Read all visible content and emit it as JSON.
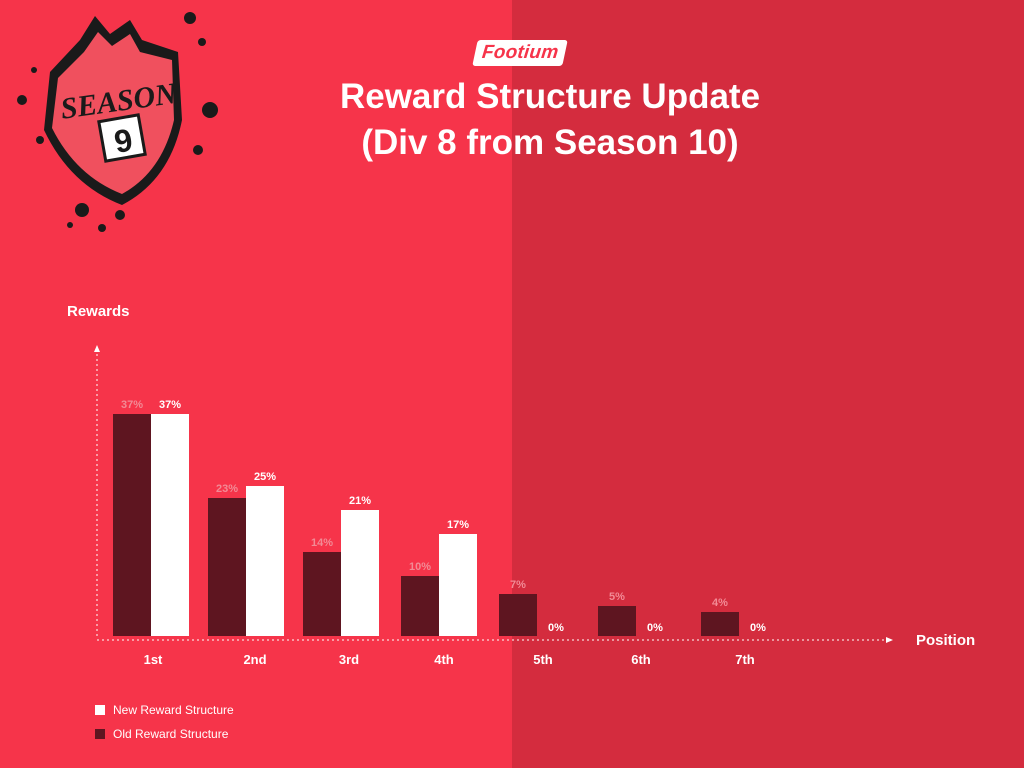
{
  "brand": {
    "name": "Footium"
  },
  "badge": {
    "text": "SEASON",
    "number": "9"
  },
  "header": {
    "title_line1": "Reward Structure Update",
    "title_line2": "(Div 8 from Season 10)"
  },
  "colors": {
    "background_left": "#f6344a",
    "background_right": "#d42c3e",
    "new_series": "#ffffff",
    "old_series": "#5e1520",
    "old_label": "#f28a95"
  },
  "chart_data": {
    "type": "bar",
    "ylabel": "Rewards",
    "xlabel": "Position",
    "categories": [
      "1st",
      "2nd",
      "3rd",
      "4th",
      "5th",
      "6th",
      "7th"
    ],
    "series": [
      {
        "name": "Old Reward Structure",
        "values": [
          37,
          23,
          14,
          10,
          7,
          5,
          4
        ],
        "labels": [
          "37%",
          "23%",
          "14%",
          "10%",
          "7%",
          "5%",
          "4%"
        ]
      },
      {
        "name": "New Reward Structure",
        "values": [
          37,
          25,
          21,
          17,
          0,
          0,
          0
        ],
        "labels": [
          "37%",
          "25%",
          "21%",
          "17%",
          "0%",
          "0%",
          "0%"
        ]
      }
    ],
    "ylim": [
      0,
      40
    ],
    "grid": false,
    "legend": "bottom-left"
  }
}
